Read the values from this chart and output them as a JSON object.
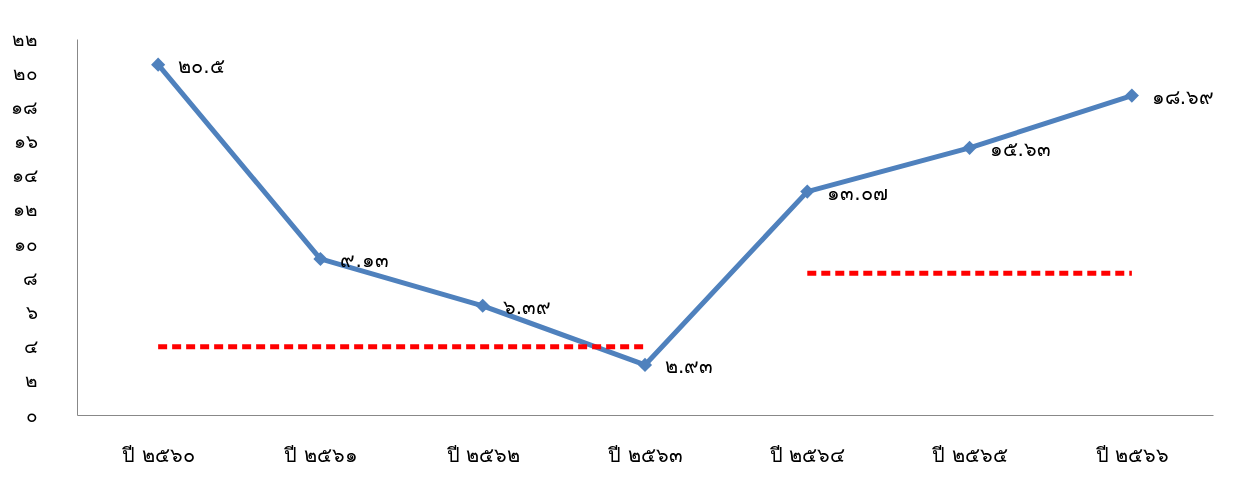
{
  "chart_data": {
    "type": "line",
    "categories": [
      "ปี ๒๕๖๐",
      "ปี ๒๕๖๑",
      "ปี ๒๕๖๒",
      "ปี ๒๕๖๓",
      "ปี ๒๕๖๔",
      "ปี ๒๕๖๕",
      "ปี ๒๕๖๖"
    ],
    "series": [
      {
        "color": "#4f81bd",
        "values": [
          20.5,
          9.13,
          6.39,
          2.93,
          13.07,
          15.63,
          18.69
        ],
        "value_labels": [
          "๒๐.๕",
          "๙.๑๓",
          "๖.๓๙",
          "๒.๙๓",
          "๑๓.๐๗",
          "๑๕.๖๓",
          "๑๘.๖๙"
        ]
      },
      {
        "color": "#ff0000",
        "line_style": "dashed",
        "marker": "none",
        "values": [
          4,
          4,
          4,
          4,
          null,
          null,
          null
        ]
      },
      {
        "color": "#ff0000",
        "line_style": "dashed",
        "marker": "none",
        "values": [
          null,
          null,
          null,
          null,
          8.3,
          8.3,
          8.3
        ]
      }
    ],
    "ylim": [
      0,
      22
    ],
    "yticks": [
      {
        "value": 0,
        "label": "๐"
      },
      {
        "value": 2,
        "label": "๒"
      },
      {
        "value": 4,
        "label": "๔"
      },
      {
        "value": 6,
        "label": "๖"
      },
      {
        "value": 8,
        "label": "๘"
      },
      {
        "value": 10,
        "label": "๑๐"
      },
      {
        "value": 12,
        "label": "๑๒"
      },
      {
        "value": 14,
        "label": "๑๔"
      },
      {
        "value": 16,
        "label": "๑๖"
      },
      {
        "value": 18,
        "label": "๑๘"
      },
      {
        "value": 20,
        "label": "๒๐"
      },
      {
        "value": 22,
        "label": "๒๒"
      }
    ],
    "grid": false,
    "marker": "diamond",
    "line_style": "solid"
  }
}
